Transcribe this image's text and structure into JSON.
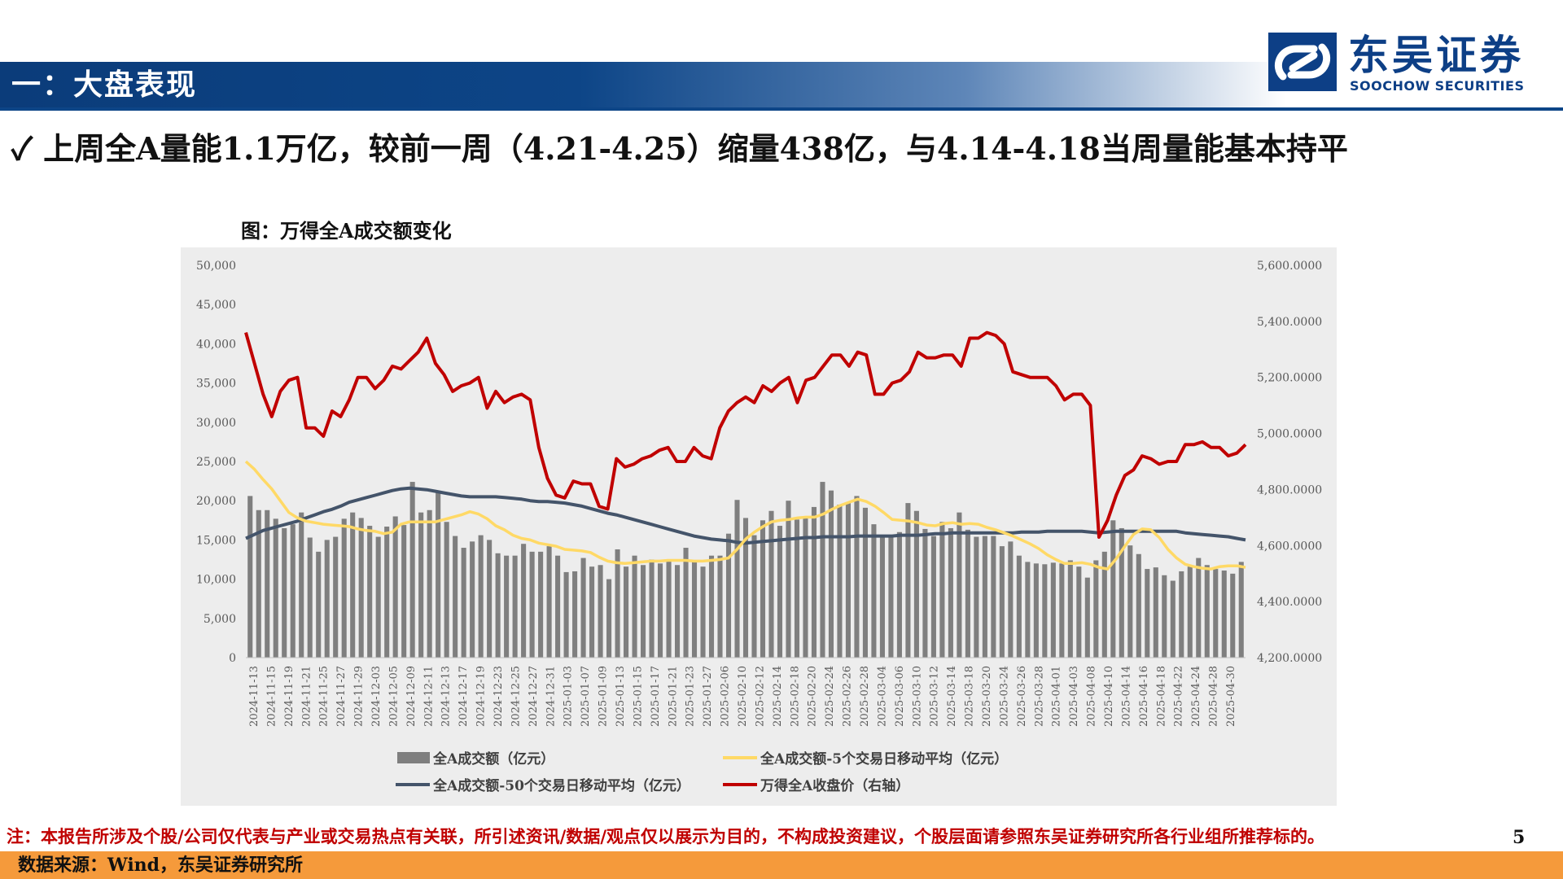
{
  "header": {
    "title": "一：大盘表现"
  },
  "logo": {
    "name_cn": "东吴证券",
    "name_en": "SOOCHOW SECURITIES"
  },
  "headline": "✓ 上周全A量能1.1万亿，较前一周（4.21-4.25）缩量438亿，与4.14-4.18当周量能基本持平",
  "chart_caption": "图：万得全A成交额变化",
  "note": "注：本报告所涉及个股/公司仅代表与产业或交易热点有关联，所引述资讯/数据/观点仅以展示为目的，不构成投资建议，个股层面请参照东吴证券研究所各行业组所推荐标的。",
  "page_number": "5",
  "footer": {
    "source": "数据来源：Wind，东吴证券研究所"
  },
  "colors": {
    "bar": "#7f7f7f",
    "ma5": "#ffd966",
    "ma50": "#44546a",
    "index": "#c00000",
    "header": "#0d4587",
    "footer": "#f59a3b"
  },
  "chart_data": {
    "type": "bar",
    "title": "",
    "y_left": {
      "range": [
        0,
        50000
      ],
      "ticks": [
        "50,000",
        "45,000",
        "40,000",
        "35,000",
        "30,000",
        "25,000",
        "20,000",
        "15,000",
        "10,000",
        "5,000",
        "0"
      ]
    },
    "y_right": {
      "range": [
        4200,
        5600
      ],
      "ticks": [
        "5,600.0000",
        "5,400.0000",
        "5,200.0000",
        "5,000.0000",
        "4,800.0000",
        "4,600.0000",
        "4,400.0000",
        "4,200.0000"
      ]
    },
    "legend_position": "bottom",
    "x_labels": [
      "2024-11-13",
      "2024-11-15",
      "2024-11-19",
      "2024-11-21",
      "2024-11-25",
      "2024-11-27",
      "2024-11-29",
      "2024-12-03",
      "2024-12-05",
      "2024-12-09",
      "2024-12-11",
      "2024-12-13",
      "2024-12-17",
      "2024-12-19",
      "2024-12-23",
      "2024-12-25",
      "2024-12-27",
      "2024-12-31",
      "2025-01-03",
      "2025-01-07",
      "2025-01-09",
      "2025-01-13",
      "2025-01-15",
      "2025-01-17",
      "2025-01-21",
      "2025-01-23",
      "2025-01-27",
      "2025-02-06",
      "2025-02-10",
      "2025-02-12",
      "2025-02-14",
      "2025-02-18",
      "2025-02-20",
      "2025-02-24",
      "2025-02-26",
      "2025-02-28",
      "2025-03-04",
      "2025-03-06",
      "2025-03-10",
      "2025-03-12",
      "2025-03-14",
      "2025-03-18",
      "2025-03-20",
      "2025-03-24",
      "2025-03-26",
      "2025-03-28",
      "2025-04-01",
      "2025-04-03",
      "2025-04-08",
      "2025-04-10",
      "2025-04-14",
      "2025-04-16",
      "2025-04-18",
      "2025-04-22",
      "2025-04-24",
      "2025-04-28",
      "2025-04-30"
    ],
    "series": [
      {
        "name": "全A成交额（亿元）",
        "type": "bar",
        "axis": "left",
        "values": [
          20600,
          18800,
          18800,
          17700,
          16500,
          17000,
          18500,
          15300,
          13500,
          15000,
          15400,
          17700,
          18500,
          17800,
          16800,
          15400,
          16700,
          18000,
          16900,
          22400,
          18500,
          18800,
          21000,
          17300,
          15500,
          14000,
          14800,
          15600,
          15000,
          13300,
          13000,
          13000,
          14500,
          13500,
          13500,
          14200,
          13000,
          10900,
          11000,
          12700,
          11600,
          11800,
          10000,
          13800,
          11600,
          13000,
          11800,
          12500,
          12000,
          12400,
          11800,
          14000,
          12200,
          11600,
          13000,
          13000,
          15800,
          20100,
          17800,
          15600,
          17500,
          18700,
          16800,
          20000,
          17600,
          18000,
          19200,
          22400,
          21300,
          19500,
          19800,
          20600,
          19100,
          17000,
          15400,
          15500,
          16000,
          19700,
          18700,
          16400,
          15500,
          17300,
          16500,
          18500,
          16300,
          15400,
          15500,
          15500,
          14200,
          14800,
          13000,
          12200,
          12000,
          11900,
          12100,
          12000,
          12400,
          11600,
          10200,
          12400,
          13500,
          17500,
          16500,
          14300,
          13200,
          11300,
          11500,
          10500,
          9800,
          11000,
          11600,
          12700,
          11800,
          11300,
          11100,
          10700,
          12200
        ]
      },
      {
        "name": "全A成交额-5个交易日移动平均（亿元）",
        "type": "line",
        "axis": "left",
        "values": [
          25000,
          24000,
          22700,
          21500,
          20000,
          18500,
          17800,
          17400,
          17200,
          17000,
          16900,
          16800,
          16700,
          16400,
          16200,
          16100,
          15800,
          16000,
          17000,
          17300,
          17300,
          17300,
          17300,
          17600,
          17900,
          18200,
          18600,
          18300,
          17700,
          16800,
          16300,
          15600,
          15200,
          15000,
          14600,
          14400,
          14200,
          13800,
          13700,
          13600,
          13400,
          12800,
          12300,
          12100,
          12000,
          12100,
          12200,
          12300,
          12300,
          12400,
          12400,
          12400,
          12300,
          12300,
          12400,
          12500,
          12700,
          13800,
          15100,
          16000,
          16700,
          17300,
          17500,
          17600,
          17800,
          17900,
          17900,
          18300,
          18900,
          19400,
          19800,
          20200,
          19900,
          19300,
          18500,
          17600,
          17500,
          17400,
          17200,
          16900,
          16800,
          17100,
          17200,
          17000,
          17100,
          17000,
          16600,
          16300,
          15900,
          15500,
          15000,
          14500,
          13900,
          13100,
          12500,
          12000,
          12000,
          12100,
          11900,
          11500,
          11300,
          12600,
          14200,
          15700,
          16400,
          16300,
          15300,
          13800,
          12700,
          11900,
          11600,
          11400,
          11300,
          11600,
          11700,
          11700,
          11500
        ]
      },
      {
        "name": "全A成交额-50个交易日移动平均（亿元）",
        "type": "line",
        "axis": "left",
        "values": [
          15200,
          15700,
          16200,
          16500,
          16800,
          17100,
          17400,
          17800,
          18200,
          18600,
          18900,
          19300,
          19800,
          20100,
          20400,
          20700,
          21000,
          21300,
          21500,
          21600,
          21500,
          21400,
          21200,
          21000,
          20800,
          20600,
          20500,
          20500,
          20500,
          20500,
          20400,
          20300,
          20200,
          20000,
          19900,
          19900,
          19800,
          19700,
          19500,
          19300,
          19000,
          18700,
          18400,
          18200,
          17900,
          17600,
          17300,
          17000,
          16700,
          16400,
          16100,
          15800,
          15500,
          15300,
          15100,
          15000,
          14900,
          14700,
          14600,
          14700,
          14800,
          14900,
          15000,
          15100,
          15200,
          15300,
          15300,
          15400,
          15400,
          15400,
          15400,
          15500,
          15500,
          15500,
          15500,
          15500,
          15600,
          15600,
          15600,
          15700,
          15800,
          15800,
          15900,
          15900,
          15900,
          15900,
          15900,
          15900,
          15900,
          15900,
          16000,
          16000,
          16000,
          16100,
          16100,
          16100,
          16100,
          16100,
          16000,
          15900,
          16000,
          16100,
          16100,
          16100,
          16100,
          16100,
          16100,
          16100,
          16100,
          15900,
          15800,
          15700,
          15600,
          15500,
          15400,
          15200,
          15000
        ]
      },
      {
        "name": "万得全A收盘价（右轴）",
        "type": "line",
        "axis": "right",
        "values": [
          5360,
          5250,
          5140,
          5060,
          5150,
          5190,
          5200,
          5020,
          5020,
          4990,
          5080,
          5060,
          5120,
          5200,
          5200,
          5160,
          5190,
          5240,
          5230,
          5260,
          5290,
          5340,
          5250,
          5210,
          5150,
          5170,
          5180,
          5200,
          5090,
          5150,
          5110,
          5130,
          5140,
          5120,
          4950,
          4840,
          4780,
          4770,
          4830,
          4820,
          4820,
          4740,
          4730,
          4910,
          4880,
          4890,
          4910,
          4920,
          4940,
          4950,
          4900,
          4900,
          4950,
          4920,
          4910,
          5020,
          5080,
          5110,
          5130,
          5110,
          5170,
          5150,
          5180,
          5200,
          5110,
          5190,
          5200,
          5240,
          5280,
          5280,
          5240,
          5290,
          5280,
          5140,
          5140,
          5180,
          5190,
          5220,
          5290,
          5270,
          5270,
          5280,
          5280,
          5240,
          5340,
          5340,
          5360,
          5350,
          5320,
          5220,
          5210,
          5200,
          5200,
          5200,
          5170,
          5120,
          5140,
          5140,
          5100,
          4630,
          4690,
          4780,
          4850,
          4870,
          4920,
          4910,
          4890,
          4900,
          4900,
          4960,
          4960,
          4970,
          4950,
          4950,
          4920,
          4930,
          4960
        ]
      }
    ]
  }
}
